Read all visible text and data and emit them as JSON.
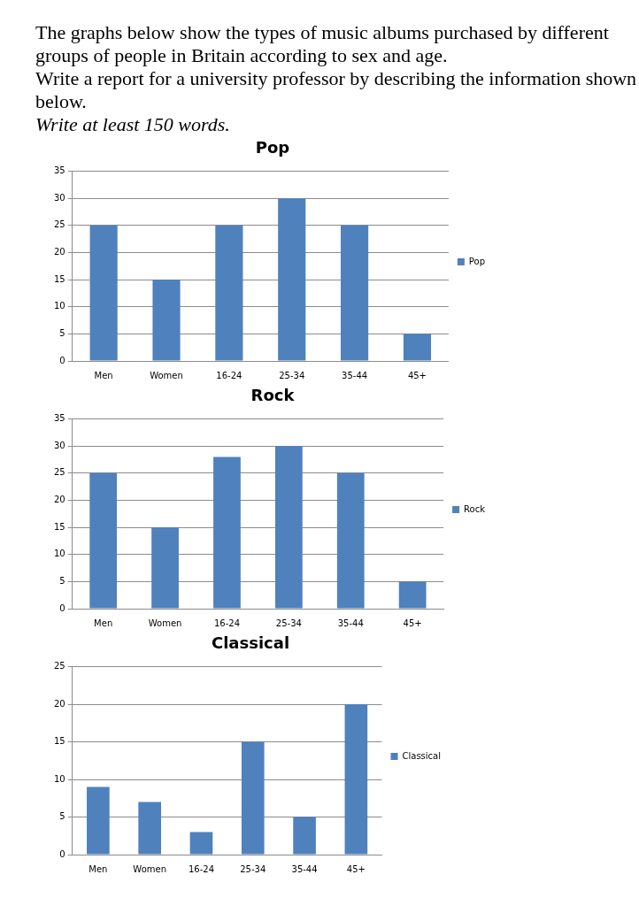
{
  "chart_data": [
    {
      "type": "other",
      "annotations": [
        "The graphs below show the types of music albums purchased by different groups of people in Britain according to sex and age.",
        "Write a report for a university professor by describing the information shown below.",
        "Write at least 150 words."
      ]
    },
    {
      "type": "bar",
      "title": "Pop",
      "categories": [
        "Men",
        "Women",
        "16-24",
        "25-34",
        "35-44",
        "45+"
      ],
      "series": [
        {
          "name": "Pop",
          "color": "#4f81bd",
          "values": [
            25,
            15,
            25,
            30,
            25,
            5
          ]
        }
      ],
      "ylim": [
        0,
        35
      ],
      "yticks": [
        0,
        5,
        10,
        15,
        20,
        25,
        30,
        35
      ],
      "grid": "y",
      "legend": "right"
    },
    {
      "type": "bar",
      "title": "Rock",
      "categories": [
        "Men",
        "Women",
        "16-24",
        "25-34",
        "35-44",
        "45+"
      ],
      "series": [
        {
          "name": "Rock",
          "color": "#4f81bd",
          "values": [
            25,
            15,
            28,
            30,
            25,
            5
          ]
        }
      ],
      "ylim": [
        0,
        35
      ],
      "yticks": [
        0,
        5,
        10,
        15,
        20,
        25,
        30,
        35
      ],
      "grid": "y",
      "legend": "right"
    },
    {
      "type": "bar",
      "title": "Classical",
      "categories": [
        "Men",
        "Women",
        "16-24",
        "25-34",
        "35-44",
        "45+"
      ],
      "series": [
        {
          "name": "Classical",
          "color": "#4f81bd",
          "values": [
            9,
            7,
            3,
            15,
            5,
            20
          ]
        }
      ],
      "ylim": [
        0,
        25
      ],
      "yticks": [
        0,
        5,
        10,
        15,
        20,
        25
      ],
      "grid": "y",
      "legend": "right"
    }
  ]
}
